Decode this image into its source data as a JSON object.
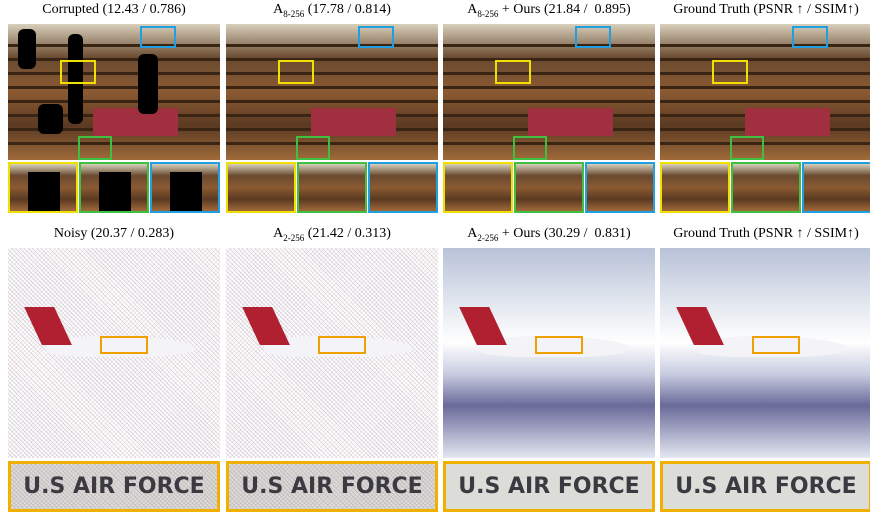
{
  "rows": [
    {
      "captions": [
        {
          "text": "Corrupted (12.43 / 0.786)"
        },
        {
          "base": "A",
          "sub": "8-256",
          "rest": " (17.78 / 0.814)"
        },
        {
          "base": "A",
          "sub": "8-256",
          "rest": " + Ours (21.84 /  0.895)"
        },
        {
          "text": "Ground Truth (PSNR ↑ / SSIM↑)"
        }
      ]
    },
    {
      "captions": [
        {
          "text": "Noisy (20.37 / 0.283)"
        },
        {
          "base": "A",
          "sub": "2-256",
          "rest": " (21.42 / 0.313)"
        },
        {
          "base": "A",
          "sub": "2-256",
          "rest": " + Ours (30.29 /  0.831)"
        },
        {
          "text": "Ground Truth (PSNR ↑ / SSIM↑)"
        }
      ],
      "crop_text": "U.S AIR FORCE"
    }
  ]
}
